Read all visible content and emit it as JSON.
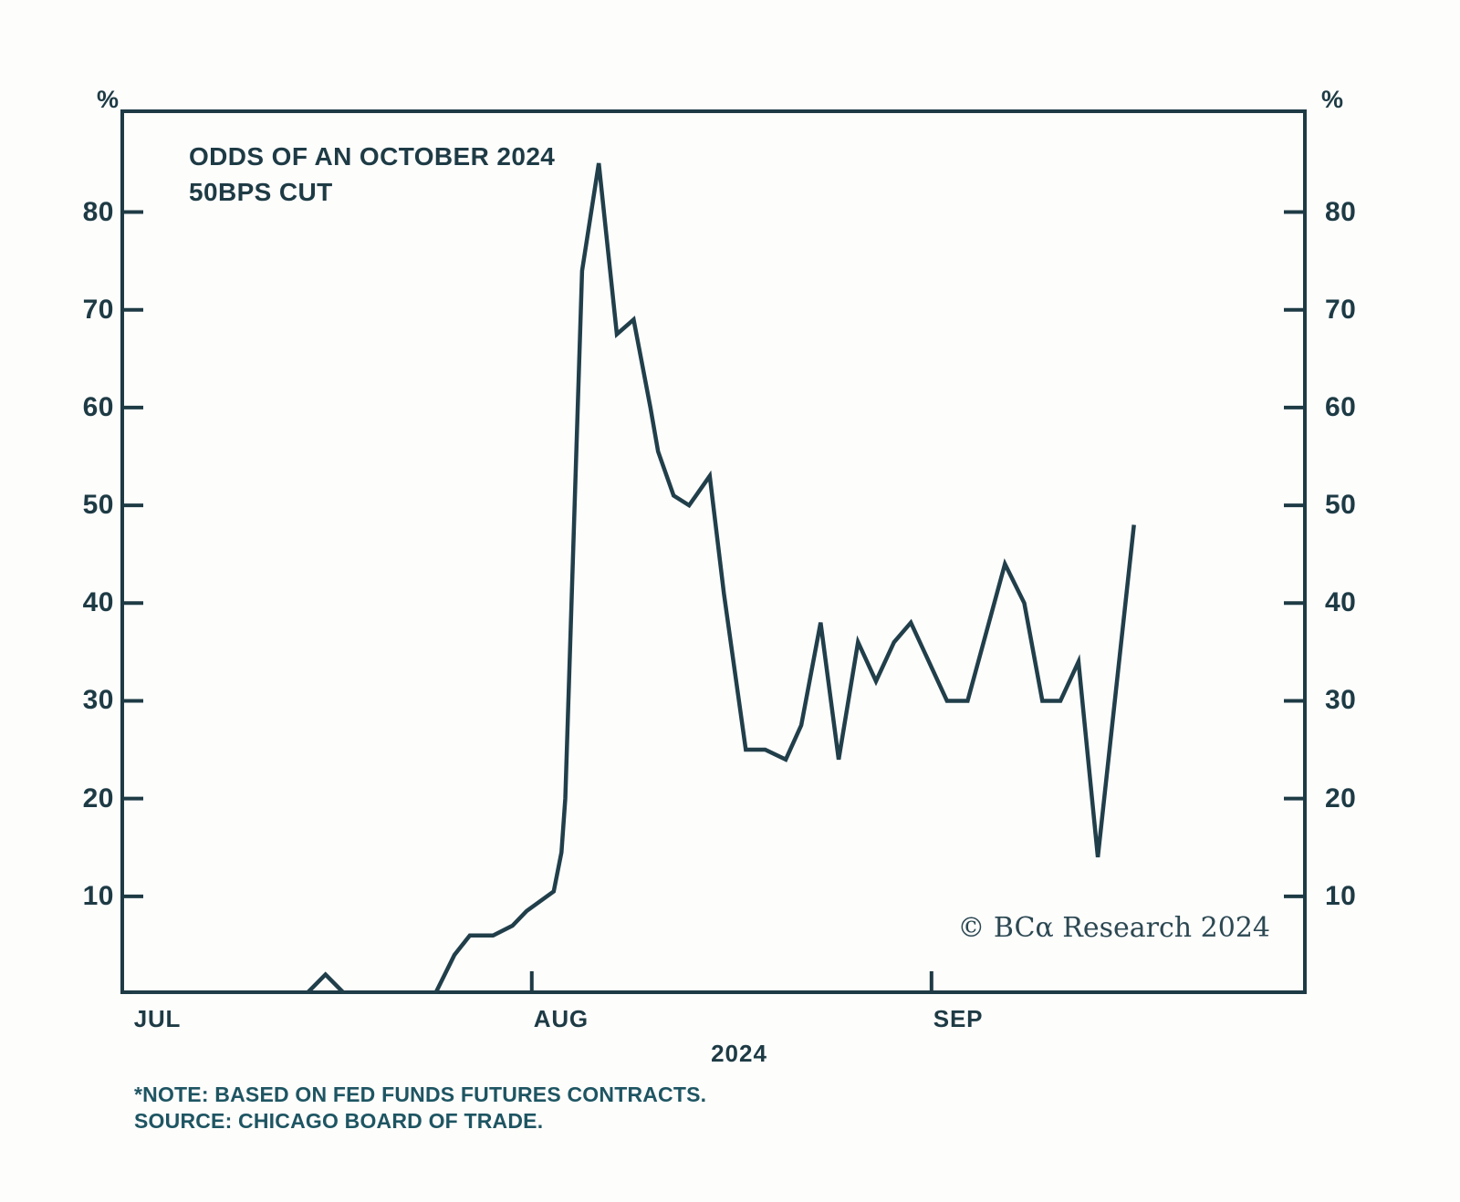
{
  "colors": {
    "ink": "#1e3b45",
    "line": "#213f4a",
    "note": "#1e5562",
    "watermark": "#2c4852",
    "background": "#fdfdfc"
  },
  "header": {
    "title_line1": "ODDS OF AN OCTOBER 2024",
    "title_line2": "50BPS CUT"
  },
  "watermark": {
    "text": "© BCα Research 2024"
  },
  "footnote": {
    "line1": "*NOTE: BASED ON FED FUNDS FUTURES CONTRACTS.",
    "line2": "SOURCE: CHICAGO BOARD OF TRADE."
  },
  "chart_data": {
    "type": "line",
    "title": "ODDS OF AN OCTOBER 2024 50BPS CUT",
    "xlabel": "2024",
    "ylabel": "%",
    "y_unit": "%",
    "x_year_label": "2024",
    "grid": false,
    "legend": "none",
    "ylim": [
      0,
      90.5
    ],
    "xlim_days": [
      -0.9,
      91.1
    ],
    "y_ticks": [
      10,
      20,
      30,
      40,
      50,
      60,
      70,
      80
    ],
    "x_ticks": [
      {
        "day": 0,
        "label": "JUL",
        "tick": false
      },
      {
        "day": 31,
        "label": "AUG",
        "tick": true
      },
      {
        "day": 62,
        "label": "SEP",
        "tick": true
      }
    ],
    "series": [
      {
        "name": "Odds of an October 2024 50bps cut (%)",
        "x_unit": "days since Jul 1, 2024",
        "points": [
          [
            0,
            0
          ],
          [
            13.5,
            0
          ],
          [
            15,
            2
          ],
          [
            16.5,
            0
          ],
          [
            23.5,
            0
          ],
          [
            25,
            4
          ],
          [
            26.2,
            6
          ],
          [
            28,
            6
          ],
          [
            29.5,
            7
          ],
          [
            30.6,
            8.5
          ],
          [
            32.7,
            10.5
          ],
          [
            33.3,
            14.5
          ],
          [
            33.6,
            20
          ],
          [
            34.9,
            74
          ],
          [
            36.2,
            85
          ],
          [
            37.6,
            67.5
          ],
          [
            38.9,
            69
          ],
          [
            40.2,
            60
          ],
          [
            40.8,
            55.5
          ],
          [
            42,
            51
          ],
          [
            43.2,
            50
          ],
          [
            44.8,
            53
          ],
          [
            45.9,
            41
          ],
          [
            47.6,
            25
          ],
          [
            49.1,
            25
          ],
          [
            50.7,
            24
          ],
          [
            51.9,
            27.5
          ],
          [
            53.4,
            38
          ],
          [
            54.8,
            24
          ],
          [
            56.3,
            36
          ],
          [
            57.7,
            32
          ],
          [
            59.1,
            36
          ],
          [
            60.4,
            38
          ],
          [
            63.2,
            30
          ],
          [
            64.8,
            30
          ],
          [
            67.7,
            44
          ],
          [
            69.2,
            40
          ],
          [
            70.6,
            30
          ],
          [
            72,
            30
          ],
          [
            73.4,
            34
          ],
          [
            74.9,
            14
          ],
          [
            77.7,
            48
          ]
        ]
      }
    ]
  }
}
